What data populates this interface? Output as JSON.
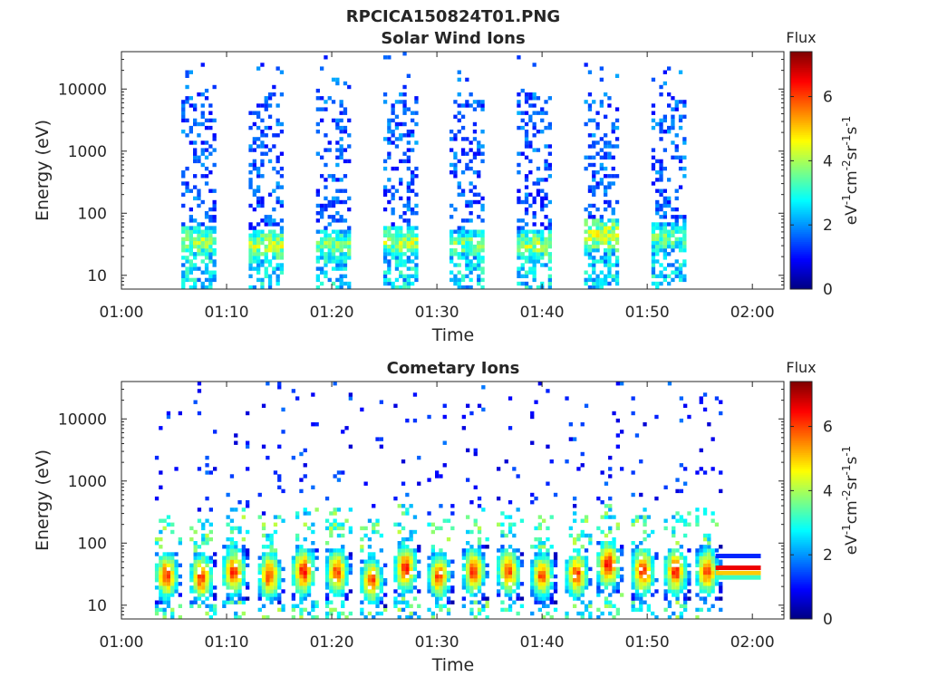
{
  "figure_title": "RPCICA150824T01.PNG",
  "chart_data": [
    {
      "type": "heatmap",
      "title": "Solar Wind Ions",
      "xlabel": "Time",
      "ylabel": "Energy (eV)",
      "x_ticks": [
        "01:00",
        "01:10",
        "01:20",
        "01:30",
        "01:40",
        "01:50",
        "02:00"
      ],
      "xlim_minutes": [
        0,
        63
      ],
      "y_scale": "log",
      "ylim": [
        6,
        40000
      ],
      "y_ticks": [
        10,
        100,
        1000,
        10000
      ],
      "y_tick_labels": [
        "10",
        "100",
        "1000",
        "10000"
      ],
      "colorbar": {
        "label": "Flux",
        "units": [
          "eV",
          "-1",
          "cm",
          "-2",
          "sr",
          "-1",
          "s",
          "-1"
        ],
        "range": [
          0,
          7.4
        ],
        "ticks": [
          "0",
          "2",
          "4",
          "6"
        ],
        "colormap": "jet"
      },
      "sweeps": [
        {
          "center_min": 7.3,
          "width_min": 3.2,
          "peak_energy_ev": 35,
          "peak_flux": 4.8,
          "low_flux": 1.5
        },
        {
          "center_min": 13.7,
          "width_min": 3.2,
          "peak_energy_ev": 30,
          "peak_flux": 5.0,
          "low_flux": 1.5
        },
        {
          "center_min": 20.1,
          "width_min": 3.2,
          "peak_energy_ev": 30,
          "peak_flux": 4.6,
          "low_flux": 1.5
        },
        {
          "center_min": 26.5,
          "width_min": 3.2,
          "peak_energy_ev": 35,
          "peak_flux": 4.9,
          "low_flux": 1.5
        },
        {
          "center_min": 32.8,
          "width_min": 3.2,
          "peak_energy_ev": 32,
          "peak_flux": 4.5,
          "low_flux": 1.5
        },
        {
          "center_min": 39.2,
          "width_min": 3.2,
          "peak_energy_ev": 30,
          "peak_flux": 4.8,
          "low_flux": 1.5
        },
        {
          "center_min": 45.6,
          "width_min": 3.2,
          "peak_energy_ev": 45,
          "peak_flux": 5.2,
          "low_flux": 1.5
        },
        {
          "center_min": 52.0,
          "width_min": 3.2,
          "peak_energy_ev": 40,
          "peak_flux": 4.4,
          "low_flux": 1.5
        }
      ]
    },
    {
      "type": "heatmap",
      "title": "Cometary Ions",
      "xlabel": "Time",
      "ylabel": "Energy (eV)",
      "x_ticks": [
        "01:00",
        "01:10",
        "01:20",
        "01:30",
        "01:40",
        "01:50",
        "02:00"
      ],
      "xlim_minutes": [
        0,
        63
      ],
      "y_scale": "log",
      "ylim": [
        6,
        40000
      ],
      "y_ticks": [
        10,
        100,
        1000,
        10000
      ],
      "y_tick_labels": [
        "10",
        "100",
        "1000",
        "10000"
      ],
      "colorbar": {
        "label": "Flux",
        "units": [
          "eV",
          "-1",
          "cm",
          "-2",
          "sr",
          "-1",
          "s",
          "-1"
        ],
        "range": [
          0,
          7.4
        ],
        "ticks": [
          "0",
          "2",
          "4",
          "6"
        ],
        "colormap": "jet"
      },
      "bursts": [
        {
          "center_min": 4.3,
          "peak_energy_ev": 30,
          "peak_flux": 7.0
        },
        {
          "center_min": 7.6,
          "peak_energy_ev": 28,
          "peak_flux": 7.0
        },
        {
          "center_min": 10.7,
          "peak_energy_ev": 35,
          "peak_flux": 7.1
        },
        {
          "center_min": 14.1,
          "peak_energy_ev": 30,
          "peak_flux": 7.0
        },
        {
          "center_min": 17.3,
          "peak_energy_ev": 35,
          "peak_flux": 7.2
        },
        {
          "center_min": 20.5,
          "peak_energy_ev": 35,
          "peak_flux": 7.0
        },
        {
          "center_min": 23.8,
          "peak_energy_ev": 25,
          "peak_flux": 6.9
        },
        {
          "center_min": 27.0,
          "peak_energy_ev": 40,
          "peak_flux": 7.1
        },
        {
          "center_min": 30.2,
          "peak_energy_ev": 30,
          "peak_flux": 6.9
        },
        {
          "center_min": 33.5,
          "peak_energy_ev": 35,
          "peak_flux": 7.0
        },
        {
          "center_min": 36.8,
          "peak_energy_ev": 35,
          "peak_flux": 7.0
        },
        {
          "center_min": 40.0,
          "peak_energy_ev": 30,
          "peak_flux": 6.8
        },
        {
          "center_min": 43.3,
          "peak_energy_ev": 32,
          "peak_flux": 7.0
        },
        {
          "center_min": 46.3,
          "peak_energy_ev": 45,
          "peak_flux": 7.3
        },
        {
          "center_min": 49.6,
          "peak_energy_ev": 35,
          "peak_flux": 7.2
        },
        {
          "center_min": 52.7,
          "peak_energy_ev": 35,
          "peak_flux": 7.1
        },
        {
          "center_min": 55.7,
          "peak_energy_ev": 35,
          "peak_flux": 7.0
        }
      ],
      "final_bands": [
        {
          "energy_ev": 62,
          "flux": 1.2
        },
        {
          "energy_ev": 40,
          "flux": 6.6
        },
        {
          "energy_ev": 33,
          "flux": 5.0
        },
        {
          "energy_ev": 28,
          "flux": 3.2
        }
      ],
      "final_bands_range_min": [
        56.5,
        60.8
      ]
    }
  ]
}
